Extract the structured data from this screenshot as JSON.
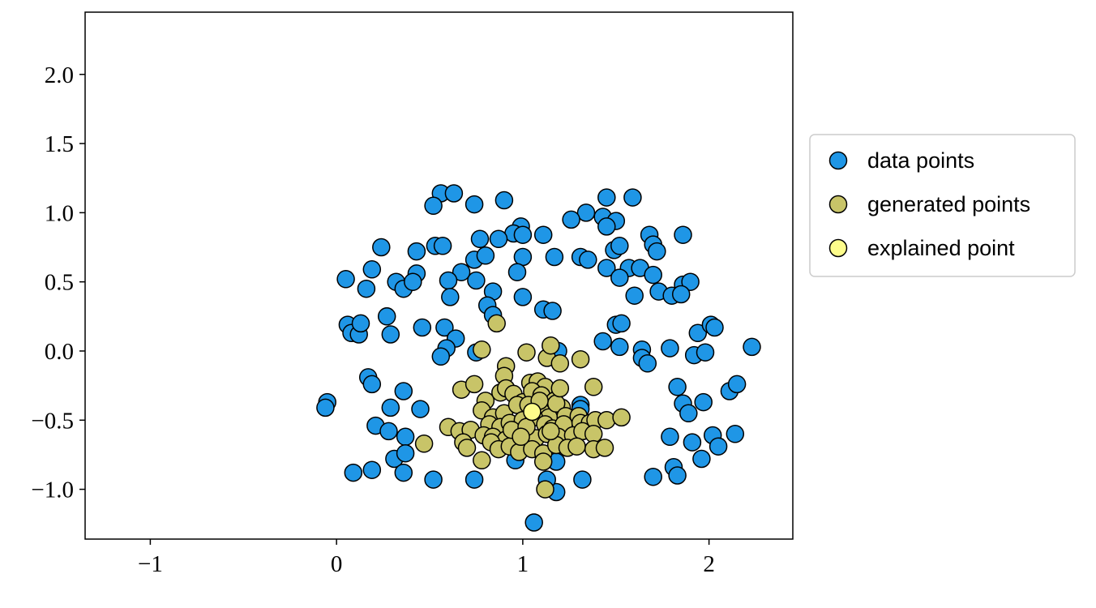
{
  "chart_data": {
    "type": "scatter",
    "title": "",
    "xlabel": "",
    "ylabel": "",
    "xlim": [
      -1.35,
      2.45
    ],
    "ylim": [
      -1.36,
      2.45
    ],
    "x_ticks": [
      -1,
      0,
      1,
      2
    ],
    "x_tick_labels": [
      "−1",
      "0",
      "1",
      "2"
    ],
    "y_ticks": [
      -1.0,
      -0.5,
      0.0,
      0.5,
      1.0,
      1.5,
      2.0
    ],
    "y_tick_labels": [
      "−1.0",
      "−0.5",
      "0.0",
      "0.5",
      "1.0",
      "1.5",
      "2.0"
    ],
    "grid": false,
    "legend_position": "outside-right",
    "series": [
      {
        "name": "data points",
        "color": "#1f96e6",
        "points": [
          [
            0.56,
            1.14
          ],
          [
            0.63,
            1.14
          ],
          [
            0.52,
            1.05
          ],
          [
            0.74,
            1.06
          ],
          [
            0.9,
            1.09
          ],
          [
            1.45,
            1.11
          ],
          [
            1.59,
            1.11
          ],
          [
            1.34,
            1.0
          ],
          [
            1.26,
            0.95
          ],
          [
            1.43,
            0.97
          ],
          [
            1.5,
            0.94
          ],
          [
            1.45,
            0.9
          ],
          [
            0.99,
            0.9
          ],
          [
            0.95,
            0.85
          ],
          [
            1.0,
            0.84
          ],
          [
            0.77,
            0.81
          ],
          [
            0.87,
            0.81
          ],
          [
            1.11,
            0.84
          ],
          [
            1.68,
            0.84
          ],
          [
            1.86,
            0.84
          ],
          [
            0.24,
            0.75
          ],
          [
            0.43,
            0.72
          ],
          [
            0.53,
            0.76
          ],
          [
            0.57,
            0.76
          ],
          [
            1.49,
            0.73
          ],
          [
            1.52,
            0.76
          ],
          [
            1.7,
            0.77
          ],
          [
            1.72,
            0.72
          ],
          [
            0.74,
            0.66
          ],
          [
            0.8,
            0.69
          ],
          [
            1.0,
            0.68
          ],
          [
            1.17,
            0.68
          ],
          [
            1.31,
            0.68
          ],
          [
            1.35,
            0.66
          ],
          [
            0.19,
            0.59
          ],
          [
            0.43,
            0.56
          ],
          [
            0.67,
            0.57
          ],
          [
            0.97,
            0.57
          ],
          [
            1.45,
            0.6
          ],
          [
            1.57,
            0.6
          ],
          [
            1.63,
            0.6
          ],
          [
            1.7,
            0.55
          ],
          [
            0.05,
            0.52
          ],
          [
            0.32,
            0.5
          ],
          [
            0.36,
            0.45
          ],
          [
            0.41,
            0.5
          ],
          [
            0.16,
            0.45
          ],
          [
            0.6,
            0.51
          ],
          [
            0.75,
            0.51
          ],
          [
            1.52,
            0.53
          ],
          [
            1.86,
            0.48
          ],
          [
            1.9,
            0.5
          ],
          [
            1.73,
            0.43
          ],
          [
            1.8,
            0.4
          ],
          [
            1.85,
            0.41
          ],
          [
            0.61,
            0.39
          ],
          [
            0.84,
            0.43
          ],
          [
            1.0,
            0.39
          ],
          [
            1.6,
            0.4
          ],
          [
            0.81,
            0.33
          ],
          [
            1.11,
            0.3
          ],
          [
            1.16,
            0.29
          ],
          [
            0.27,
            0.25
          ],
          [
            0.84,
            0.26
          ],
          [
            0.06,
            0.19
          ],
          [
            0.08,
            0.13
          ],
          [
            0.12,
            0.12
          ],
          [
            0.13,
            0.2
          ],
          [
            0.46,
            0.17
          ],
          [
            0.58,
            0.17
          ],
          [
            0.64,
            0.09
          ],
          [
            1.5,
            0.19
          ],
          [
            1.53,
            0.2
          ],
          [
            1.43,
            0.07
          ],
          [
            1.94,
            0.13
          ],
          [
            2.01,
            0.19
          ],
          [
            2.03,
            0.17
          ],
          [
            0.29,
            0.12
          ],
          [
            0.59,
            0.02
          ],
          [
            0.75,
            -0.01
          ],
          [
            1.19,
            0.0
          ],
          [
            1.52,
            0.03
          ],
          [
            1.64,
            0.01
          ],
          [
            1.79,
            0.02
          ],
          [
            1.92,
            -0.03
          ],
          [
            1.98,
            -0.01
          ],
          [
            2.23,
            0.03
          ],
          [
            0.56,
            -0.04
          ],
          [
            1.64,
            -0.05
          ],
          [
            1.67,
            -0.09
          ],
          [
            0.17,
            -0.19
          ],
          [
            0.19,
            -0.24
          ],
          [
            1.83,
            -0.26
          ],
          [
            2.11,
            -0.29
          ],
          [
            2.15,
            -0.24
          ],
          [
            -0.05,
            -0.37
          ],
          [
            -0.06,
            -0.41
          ],
          [
            0.29,
            -0.41
          ],
          [
            0.36,
            -0.29
          ],
          [
            0.45,
            -0.42
          ],
          [
            1.31,
            -0.39
          ],
          [
            1.31,
            -0.42
          ],
          [
            1.86,
            -0.38
          ],
          [
            1.97,
            -0.37
          ],
          [
            1.89,
            -0.45
          ],
          [
            0.21,
            -0.54
          ],
          [
            0.28,
            -0.58
          ],
          [
            0.37,
            -0.62
          ],
          [
            1.79,
            -0.62
          ],
          [
            1.91,
            -0.66
          ],
          [
            2.02,
            -0.61
          ],
          [
            2.05,
            -0.69
          ],
          [
            2.14,
            -0.6
          ],
          [
            0.31,
            -0.78
          ],
          [
            0.37,
            -0.74
          ],
          [
            1.96,
            -0.78
          ],
          [
            0.09,
            -0.88
          ],
          [
            0.19,
            -0.86
          ],
          [
            0.36,
            -0.88
          ],
          [
            0.52,
            -0.93
          ],
          [
            0.74,
            -0.93
          ],
          [
            1.32,
            -0.93
          ],
          [
            1.7,
            -0.91
          ],
          [
            1.81,
            -0.84
          ],
          [
            1.83,
            -0.9
          ],
          [
            1.18,
            -1.02
          ],
          [
            1.06,
            -1.24
          ],
          [
            1.13,
            -0.93
          ],
          [
            1.18,
            -0.8
          ],
          [
            0.96,
            -0.79
          ]
        ]
      },
      {
        "name": "generated points",
        "color": "#c8c468",
        "points": [
          [
            0.86,
            0.2
          ],
          [
            0.78,
            0.01
          ],
          [
            1.02,
            -0.01
          ],
          [
            1.13,
            -0.05
          ],
          [
            1.15,
            0.04
          ],
          [
            1.31,
            -0.06
          ],
          [
            1.2,
            -0.09
          ],
          [
            0.91,
            -0.11
          ],
          [
            0.9,
            -0.18
          ],
          [
            1.04,
            -0.23
          ],
          [
            1.08,
            -0.22
          ],
          [
            1.12,
            -0.26
          ],
          [
            1.38,
            -0.26
          ],
          [
            0.67,
            -0.28
          ],
          [
            0.74,
            -0.24
          ],
          [
            0.8,
            -0.36
          ],
          [
            0.88,
            -0.3
          ],
          [
            0.91,
            -0.27
          ],
          [
            0.95,
            -0.31
          ],
          [
            1.0,
            -0.37
          ],
          [
            1.05,
            -0.29
          ],
          [
            1.1,
            -0.32
          ],
          [
            1.17,
            -0.36
          ],
          [
            1.21,
            -0.41
          ],
          [
            0.78,
            -0.43
          ],
          [
            0.84,
            -0.48
          ],
          [
            0.9,
            -0.45
          ],
          [
            0.97,
            -0.39
          ],
          [
            1.03,
            -0.39
          ],
          [
            1.1,
            -0.44
          ],
          [
            1.14,
            -0.48
          ],
          [
            1.18,
            -0.38
          ],
          [
            1.23,
            -0.47
          ],
          [
            1.3,
            -0.47
          ],
          [
            0.82,
            -0.53
          ],
          [
            0.88,
            -0.55
          ],
          [
            0.93,
            -0.52
          ],
          [
            1.0,
            -0.5
          ],
          [
            1.06,
            -0.48
          ],
          [
            1.12,
            -0.53
          ],
          [
            1.16,
            -0.56
          ],
          [
            1.22,
            -0.53
          ],
          [
            1.31,
            -0.52
          ],
          [
            1.36,
            -0.52
          ],
          [
            1.39,
            -0.5
          ],
          [
            1.45,
            -0.5
          ],
          [
            1.53,
            -0.48
          ],
          [
            0.6,
            -0.55
          ],
          [
            0.66,
            -0.58
          ],
          [
            0.72,
            -0.57
          ],
          [
            0.79,
            -0.61
          ],
          [
            0.84,
            -0.62
          ],
          [
            0.91,
            -0.64
          ],
          [
            0.96,
            -0.6
          ],
          [
            1.02,
            -0.58
          ],
          [
            1.07,
            -0.63
          ],
          [
            1.13,
            -0.6
          ],
          [
            1.19,
            -0.62
          ],
          [
            1.27,
            -0.61
          ],
          [
            1.32,
            -0.58
          ],
          [
            1.38,
            -0.6
          ],
          [
            0.68,
            -0.66
          ],
          [
            0.7,
            -0.7
          ],
          [
            0.83,
            -0.66
          ],
          [
            0.87,
            -0.71
          ],
          [
            0.93,
            -0.69
          ],
          [
            0.98,
            -0.73
          ],
          [
            1.05,
            -0.71
          ],
          [
            1.11,
            -0.74
          ],
          [
            1.18,
            -0.68
          ],
          [
            1.24,
            -0.7
          ],
          [
            1.29,
            -0.69
          ],
          [
            1.38,
            -0.71
          ],
          [
            1.44,
            -0.7
          ],
          [
            0.47,
            -0.67
          ],
          [
            0.78,
            -0.79
          ],
          [
            1.11,
            -0.8
          ],
          [
            1.12,
            -1.0
          ],
          [
            1.15,
            -0.58
          ],
          [
            1.09,
            -0.36
          ],
          [
            0.94,
            -0.57
          ],
          [
            1.02,
            -0.55
          ],
          [
            1.2,
            -0.27
          ],
          [
            0.99,
            -0.62
          ]
        ]
      },
      {
        "name": "explained point",
        "color": "#fdfc8b",
        "points": [
          [
            1.05,
            -0.44
          ]
        ]
      }
    ]
  }
}
